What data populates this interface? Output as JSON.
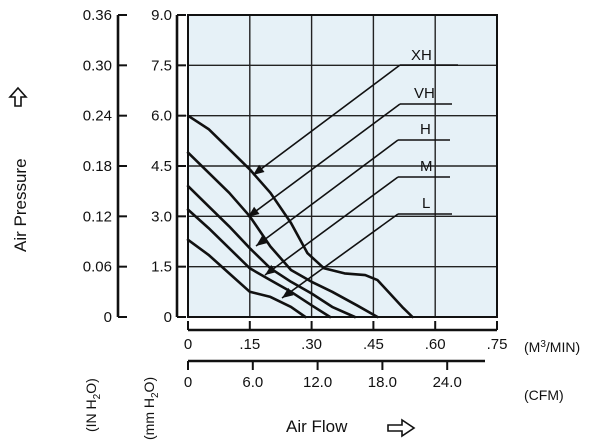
{
  "chart_data": {
    "type": "line",
    "xlabel": "Air Flow",
    "ylabel": "Air Pressure",
    "ylim_mmH2O": [
      0,
      9.0
    ],
    "ylim_inH2O": [
      0,
      0.36
    ],
    "xlim_m3min": [
      0,
      0.75
    ],
    "y_ticks_inH2O": [
      "0",
      "0.06",
      "0.12",
      "0.18",
      "0.24",
      "0.30",
      "0.36"
    ],
    "y_ticks_mmH2O": [
      "0",
      "1.5",
      "3.0",
      "4.5",
      "6.0",
      "7.5",
      "9.0"
    ],
    "x_ticks_m3min": [
      "0",
      ".15",
      ".30",
      ".45",
      ".60",
      ".75"
    ],
    "x_ticks_cfm": [
      "0",
      "6.0",
      "12.0",
      "18.0",
      "24.0"
    ],
    "x_unit_m3min": "(M3/MIN)",
    "x_unit_cfm": "(CFM)",
    "y_unit_inH2O": "(IN H2O)",
    "y_unit_mmH2O": "(mm H2O)",
    "grid": true,
    "series": [
      {
        "name": "XH",
        "x": [
          0,
          0.05,
          0.1,
          0.15,
          0.2,
          0.25,
          0.29,
          0.33,
          0.38,
          0.43,
          0.46,
          0.49,
          0.52,
          0.545
        ],
        "y": [
          6.0,
          5.6,
          5.0,
          4.4,
          3.7,
          2.8,
          1.9,
          1.45,
          1.3,
          1.25,
          1.1,
          0.7,
          0.3,
          0
        ]
      },
      {
        "name": "VH",
        "x": [
          0,
          0.05,
          0.1,
          0.15,
          0.2,
          0.25,
          0.3,
          0.35,
          0.41,
          0.46
        ],
        "y": [
          4.9,
          4.3,
          3.7,
          3.0,
          2.1,
          1.4,
          1.05,
          0.75,
          0.35,
          0
        ]
      },
      {
        "name": "H",
        "x": [
          0,
          0.05,
          0.1,
          0.15,
          0.2,
          0.25,
          0.3,
          0.35,
          0.405
        ],
        "y": [
          3.9,
          3.3,
          2.7,
          2.05,
          1.45,
          1.05,
          0.7,
          0.3,
          0
        ]
      },
      {
        "name": "M",
        "x": [
          0,
          0.05,
          0.1,
          0.15,
          0.2,
          0.25,
          0.3,
          0.345
        ],
        "y": [
          3.2,
          2.65,
          2.05,
          1.45,
          1.1,
          0.75,
          0.35,
          0
        ]
      },
      {
        "name": "L",
        "x": [
          0,
          0.05,
          0.1,
          0.15,
          0.2,
          0.25,
          0.285
        ],
        "y": [
          2.3,
          1.85,
          1.3,
          0.75,
          0.6,
          0.3,
          0
        ]
      }
    ],
    "colors": {
      "plot_background": "#e6f1f7",
      "line": "#111111",
      "grid": "#222222"
    }
  }
}
